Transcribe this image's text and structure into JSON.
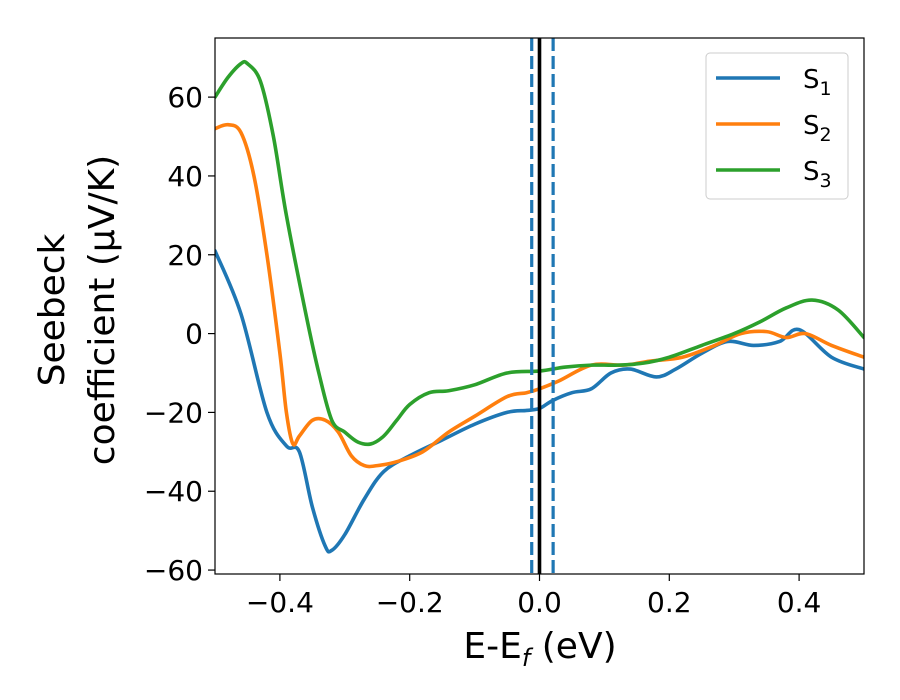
{
  "chart_data": {
    "type": "line",
    "xlabel": "E-E",
    "xlabel_sub": "f",
    "xlabel_unit": " (eV)",
    "ylabel_line1": "Seebeck",
    "ylabel_line2": "coefficient  (μV/K)",
    "xlim": [
      -0.5,
      0.5
    ],
    "ylim": [
      -61,
      75
    ],
    "xticks": [
      -0.4,
      -0.2,
      0.0,
      0.2,
      0.4
    ],
    "xtick_labels": [
      "−0.4",
      "−0.2",
      "0.0",
      "0.2",
      "0.4"
    ],
    "yticks": [
      -60,
      -40,
      -20,
      0,
      20,
      40,
      60
    ],
    "ytick_labels": [
      "−60",
      "−40",
      "−20",
      "0",
      "20",
      "40",
      "60"
    ],
    "vlines": [
      {
        "x": 0.0,
        "style": "solid",
        "color": "#000000"
      },
      {
        "x": -0.012,
        "style": "dashed",
        "color": "#1f77b4"
      },
      {
        "x": 0.021,
        "style": "dashed",
        "color": "#1f77b4"
      }
    ],
    "legend": {
      "position": "top-right"
    },
    "series": [
      {
        "name": "S",
        "sub": "1",
        "color": "#1f77b4",
        "x": [
          -0.5,
          -0.46,
          -0.42,
          -0.39,
          -0.37,
          -0.35,
          -0.33,
          -0.32,
          -0.3,
          -0.27,
          -0.24,
          -0.2,
          -0.15,
          -0.1,
          -0.05,
          -0.02,
          0.0,
          0.02,
          0.05,
          0.08,
          0.11,
          0.14,
          0.18,
          0.21,
          0.25,
          0.29,
          0.33,
          0.37,
          0.4,
          0.45,
          0.5
        ],
        "y": [
          21,
          5,
          -20,
          -28.5,
          -30,
          -44,
          -54,
          -55,
          -51,
          -42,
          -35,
          -31,
          -27,
          -23,
          -20,
          -19.5,
          -19,
          -17,
          -15,
          -14,
          -10,
          -9,
          -11,
          -9,
          -5,
          -2,
          -3,
          -2,
          1,
          -6,
          -9
        ]
      },
      {
        "name": "S",
        "sub": "2",
        "color": "#ff7f0e",
        "x": [
          -0.5,
          -0.48,
          -0.46,
          -0.44,
          -0.42,
          -0.4,
          -0.39,
          -0.38,
          -0.37,
          -0.35,
          -0.33,
          -0.31,
          -0.29,
          -0.27,
          -0.25,
          -0.22,
          -0.18,
          -0.14,
          -0.1,
          -0.05,
          -0.02,
          0.0,
          0.03,
          0.08,
          0.13,
          0.17,
          0.22,
          0.27,
          0.31,
          0.35,
          0.38,
          0.41,
          0.45,
          0.5
        ],
        "y": [
          52,
          53,
          51,
          40,
          20,
          -5,
          -20,
          -28,
          -26,
          -22,
          -22,
          -25,
          -31,
          -33.5,
          -33.5,
          -32.5,
          -30,
          -25,
          -21,
          -16,
          -15,
          -14,
          -12,
          -8,
          -8,
          -7,
          -6,
          -3,
          0,
          0.5,
          -1,
          0,
          -3,
          -6
        ]
      },
      {
        "name": "S",
        "sub": "3",
        "color": "#2ca02c",
        "x": [
          -0.5,
          -0.48,
          -0.46,
          -0.45,
          -0.43,
          -0.41,
          -0.39,
          -0.36,
          -0.34,
          -0.32,
          -0.3,
          -0.28,
          -0.26,
          -0.24,
          -0.22,
          -0.2,
          -0.17,
          -0.14,
          -0.1,
          -0.05,
          0.0,
          0.04,
          0.08,
          0.12,
          0.16,
          0.2,
          0.25,
          0.3,
          0.34,
          0.38,
          0.42,
          0.46,
          0.5
        ],
        "y": [
          60,
          65,
          68.5,
          68.5,
          64,
          50,
          30,
          5,
          -10,
          -22,
          -25,
          -27.5,
          -28,
          -26,
          -22,
          -18,
          -15,
          -14.5,
          -13,
          -10,
          -9.5,
          -8.5,
          -8,
          -8,
          -7.5,
          -6,
          -3,
          0,
          3,
          6.5,
          8.5,
          6,
          -1
        ]
      }
    ]
  }
}
